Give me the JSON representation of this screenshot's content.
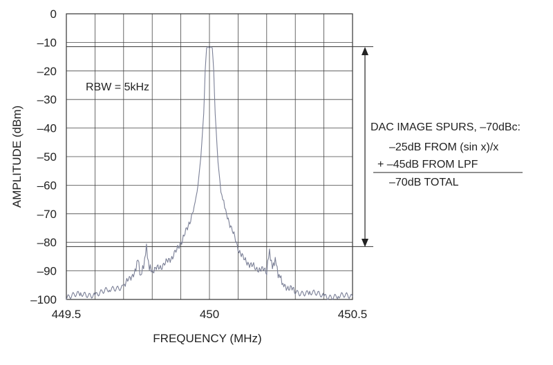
{
  "chart_data": {
    "type": "line",
    "title": "",
    "xlabel": "FREQUENCY (MHz)",
    "ylabel": "AMPLITUDE (dBm)",
    "xlim": [
      449.5,
      450.5
    ],
    "ylim": [
      -100,
      0
    ],
    "grid": true,
    "x_ticks": [
      449.5,
      450,
      450.5
    ],
    "x_tick_labels": [
      "449.5",
      "450",
      "450.5"
    ],
    "y_ticks": [
      0,
      -10,
      -20,
      -30,
      -40,
      -50,
      -60,
      -70,
      -80,
      -90,
      -100
    ],
    "y_tick_labels": [
      "0",
      "–10",
      "–20",
      "–30",
      "–40",
      "–50",
      "–60",
      "–70",
      "–80",
      "–90",
      "–100"
    ],
    "series": [
      {
        "color": "#7a7f96",
        "x": [
          449.5,
          449.55,
          449.6,
          449.65,
          449.7,
          449.72,
          449.74,
          449.75,
          449.76,
          449.77,
          449.78,
          449.79,
          449.8,
          449.84,
          449.88,
          449.9,
          449.92,
          449.94,
          449.95,
          449.96,
          449.97,
          449.98,
          449.985,
          449.99,
          449.995,
          450.0,
          450.005,
          450.01,
          450.015,
          450.02,
          450.03,
          450.04,
          450.05,
          450.06,
          450.08,
          450.1,
          450.12,
          450.16,
          450.2,
          450.21,
          450.22,
          450.23,
          450.24,
          450.25,
          450.26,
          450.28,
          450.3,
          450.35,
          450.4,
          450.45,
          450.5
        ],
        "y": [
          -99,
          -98.5,
          -98,
          -97,
          -95,
          -93,
          -90,
          -86,
          -92,
          -88,
          -82,
          -89,
          -90,
          -88,
          -84,
          -80,
          -76,
          -70,
          -66,
          -60,
          -50,
          -35,
          -20,
          -12,
          -11.5,
          -12,
          -11.5,
          -12,
          -20,
          -35,
          -52,
          -62,
          -66,
          -70,
          -76,
          -82,
          -86,
          -89,
          -90,
          -83,
          -89,
          -86,
          -91,
          -93,
          -95,
          -96,
          -97,
          -98,
          -98.5,
          -99,
          -99
        ]
      }
    ],
    "annotations": {
      "rbw": "RBW = 5kHz",
      "spurs_title": "DAC IMAGE SPURS, –70dBc:",
      "line1": "–25dB FROM (sin x)/x",
      "line2": "+ –45dB FROM LPF",
      "total": "–70dB TOTAL",
      "upper_level": -11.5,
      "lower_level": -81.5
    }
  }
}
